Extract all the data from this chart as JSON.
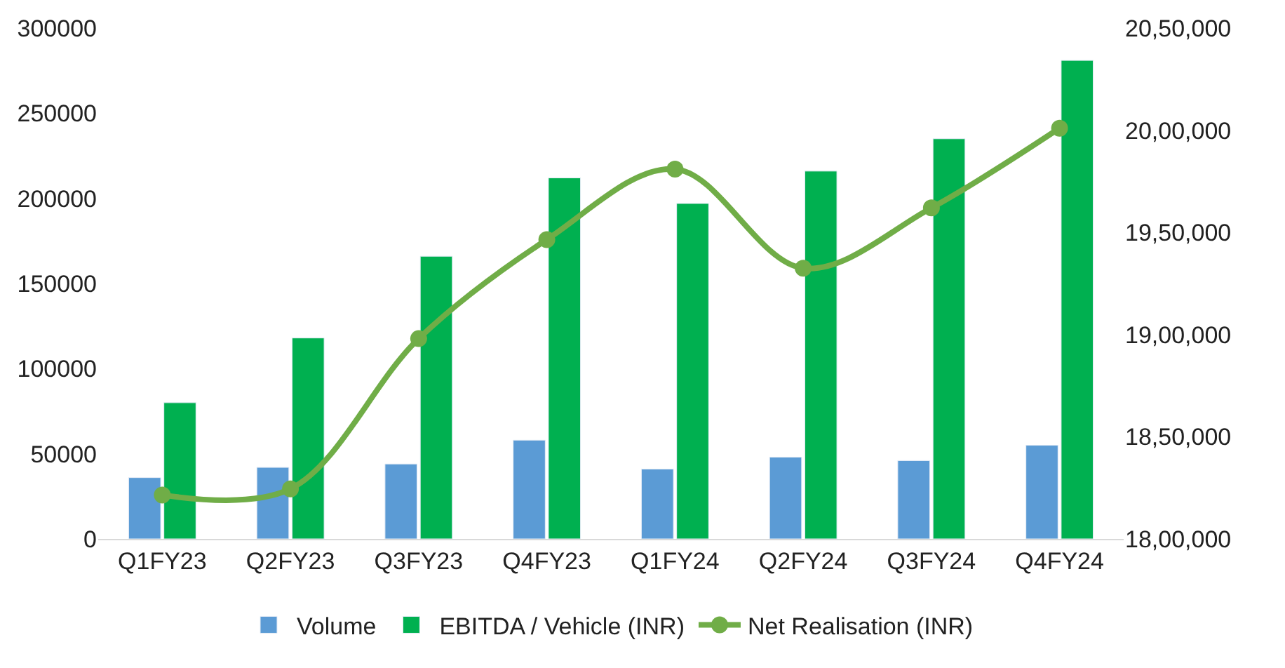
{
  "chart_data": {
    "type": "bar",
    "categories": [
      "Q1FY23",
      "Q2FY23",
      "Q3FY23",
      "Q4FY23",
      "Q1FY24",
      "Q2FY24",
      "Q3FY24",
      "Q4FY24"
    ],
    "series": [
      {
        "name": "Volume",
        "color": "#5b9bd5",
        "values": [
          36000,
          42000,
          44000,
          58000,
          41000,
          48000,
          46000,
          55000
        ]
      },
      {
        "name": "EBITDA / Vehicle (INR)",
        "color": "#00b050",
        "values": [
          80000,
          118000,
          166000,
          212000,
          197000,
          216000,
          235000,
          281000
        ]
      },
      {
        "name": "Net Realisation (INR)",
        "type": "line",
        "axis": "y2",
        "color": "#70ad47",
        "marker": "circle",
        "values": [
          1821500,
          1824500,
          1898000,
          1946500,
          1981000,
          1932500,
          1962000,
          2001000
        ]
      }
    ],
    "ylim": [
      0,
      300000
    ],
    "yticks": [
      0,
      50000,
      100000,
      150000,
      200000,
      250000,
      300000
    ],
    "y2lim": [
      1800000,
      2050000
    ],
    "y2ticks": [
      {
        "value": 1800000,
        "label": "18,00,000"
      },
      {
        "value": 1850000,
        "label": "18,50,000"
      },
      {
        "value": 1900000,
        "label": "19,00,000"
      },
      {
        "value": 1950000,
        "label": "19,50,000"
      },
      {
        "value": 2000000,
        "label": "20,00,000"
      },
      {
        "value": 2050000,
        "label": "20,50,000"
      }
    ],
    "legend": "bottom"
  }
}
